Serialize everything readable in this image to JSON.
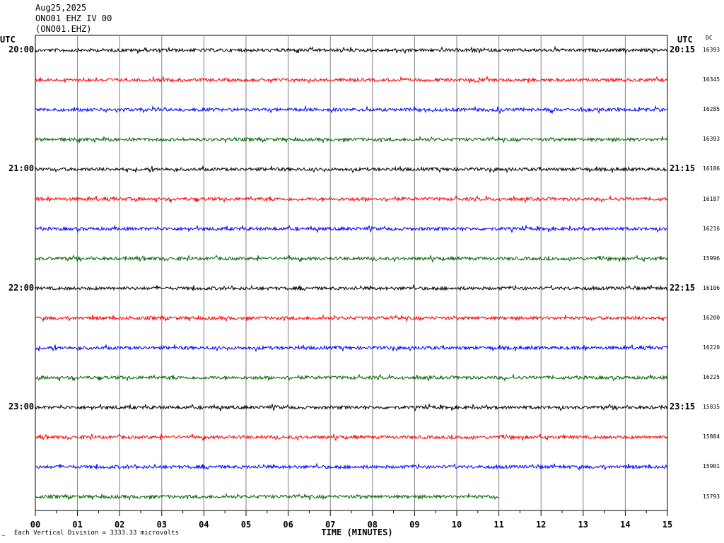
{
  "header": {
    "date": "Aug25,2025",
    "station": "ONO01 EHZ IV 00",
    "channel": "(ONO01.EHZ)"
  },
  "axes": {
    "left_utc": "UTC",
    "right_utc": "UTC",
    "dc_label": "DC",
    "xlabel": "TIME (MINUTES)",
    "footnote": "Each Vertical Division = 3333.33 microvolts",
    "corner_mark": "—"
  },
  "colors": [
    "#000000",
    "#ff0000",
    "#0000ff",
    "#006400"
  ],
  "chart_data": {
    "type": "line",
    "title": "ONO01 EHZ IV 00",
    "xlabel": "TIME (MINUTES)",
    "x_ticks": [
      "00",
      "01",
      "02",
      "03",
      "04",
      "05",
      "06",
      "07",
      "08",
      "09",
      "10",
      "11",
      "12",
      "13",
      "14",
      "15"
    ],
    "xlim": [
      0,
      15
    ],
    "grid": true,
    "rows": [
      {
        "left": "20:00",
        "right": "20:15",
        "dc": "16393",
        "color": "#000000"
      },
      {
        "left": "",
        "right": "",
        "dc": "16345",
        "color": "#ff0000"
      },
      {
        "left": "",
        "right": "",
        "dc": "16285",
        "color": "#0000ff"
      },
      {
        "left": "",
        "right": "",
        "dc": "16393",
        "color": "#006400"
      },
      {
        "left": "21:00",
        "right": "21:15",
        "dc": "16186",
        "color": "#000000"
      },
      {
        "left": "",
        "right": "",
        "dc": "16187",
        "color": "#ff0000"
      },
      {
        "left": "",
        "right": "",
        "dc": "16216",
        "color": "#0000ff"
      },
      {
        "left": "",
        "right": "",
        "dc": "15996",
        "color": "#006400"
      },
      {
        "left": "22:00",
        "right": "22:15",
        "dc": "16106",
        "color": "#000000"
      },
      {
        "left": "",
        "right": "",
        "dc": "16200",
        "color": "#ff0000"
      },
      {
        "left": "",
        "right": "",
        "dc": "16220",
        "color": "#0000ff"
      },
      {
        "left": "",
        "right": "",
        "dc": "16225",
        "color": "#006400"
      },
      {
        "left": "23:00",
        "right": "23:15",
        "dc": "15835",
        "color": "#000000"
      },
      {
        "left": "",
        "right": "",
        "dc": "15884",
        "color": "#ff0000"
      },
      {
        "left": "",
        "right": "",
        "dc": "15901",
        "color": "#0000ff"
      },
      {
        "left": "",
        "right": "",
        "dc": "15793",
        "color": "#006400",
        "end_minute": 11
      }
    ]
  }
}
